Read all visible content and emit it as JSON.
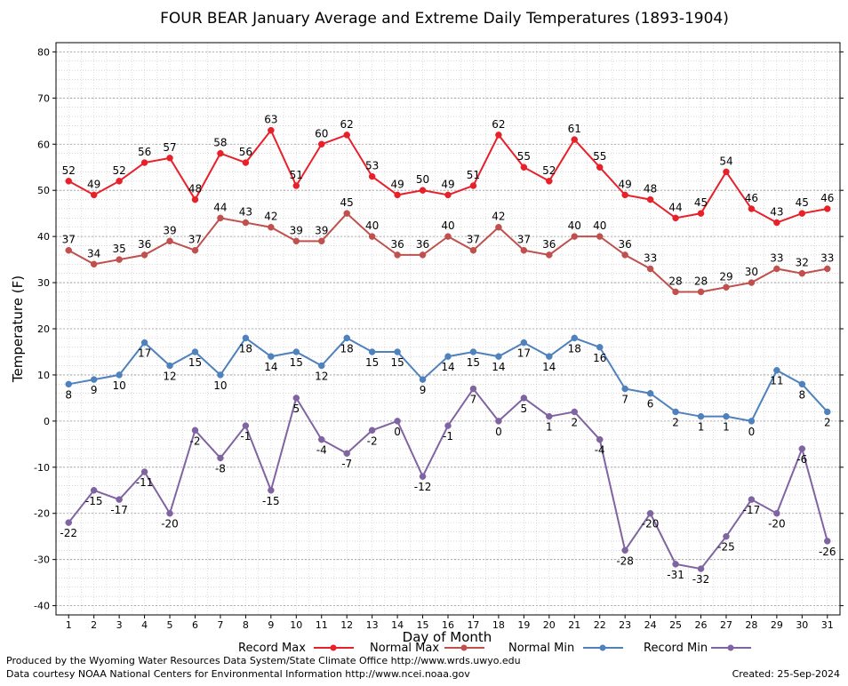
{
  "chart_data": {
    "type": "line",
    "title": "FOUR BEAR January Average and Extreme Daily Temperatures (1893-1904)",
    "xlabel": "Day of Month",
    "ylabel": "Temperature (F)",
    "ylim": [
      -42,
      82
    ],
    "yticks": [
      -40,
      -30,
      -20,
      -10,
      0,
      10,
      20,
      30,
      40,
      50,
      60,
      70,
      80
    ],
    "grid": true,
    "legend_placement": "bottom",
    "x": [
      1,
      2,
      3,
      4,
      5,
      6,
      7,
      8,
      9,
      10,
      11,
      12,
      13,
      14,
      15,
      16,
      17,
      18,
      19,
      20,
      21,
      22,
      23,
      24,
      25,
      26,
      27,
      28,
      29,
      30,
      31
    ],
    "series": [
      {
        "name": "Record Max",
        "color": "#e8202a",
        "values": [
          52,
          49,
          52,
          56,
          57,
          48,
          58,
          56,
          63,
          51,
          60,
          62,
          53,
          49,
          50,
          49,
          51,
          62,
          55,
          52,
          61,
          55,
          49,
          48,
          44,
          45,
          54,
          46,
          43,
          45,
          46
        ]
      },
      {
        "name": "Normal Max",
        "color": "#c0504d",
        "values": [
          37,
          34,
          35,
          36,
          39,
          37,
          44,
          43,
          42,
          39,
          39,
          45,
          40,
          36,
          36,
          40,
          37,
          42,
          37,
          36,
          40,
          40,
          36,
          33,
          28,
          28,
          29,
          30,
          33,
          32,
          33
        ]
      },
      {
        "name": "Normal Min",
        "color": "#4f81bd",
        "values": [
          8,
          9,
          10,
          17,
          12,
          15,
          10,
          18,
          14,
          15,
          12,
          18,
          15,
          15,
          9,
          14,
          15,
          14,
          17,
          14,
          18,
          16,
          7,
          6,
          2,
          1,
          1,
          0,
          11,
          8,
          2
        ]
      },
      {
        "name": "Record Min",
        "color": "#8064a2",
        "values": [
          -22,
          -15,
          -17,
          -11,
          -20,
          -2,
          -8,
          -1,
          -15,
          5,
          -4,
          -7,
          -2,
          0,
          -12,
          -1,
          7,
          0,
          5,
          1,
          2,
          -4,
          -28,
          -20,
          -31,
          -32,
          -25,
          -17,
          -20,
          -6,
          -26
        ]
      }
    ]
  },
  "footer": {
    "produced_by": "Produced by the Wyoming Water Resources Data System/State Climate Office http://www.wrds.uwyo.edu",
    "courtesy": "Data courtesy NOAA National Centers for Environmental Information http://www.ncei.noaa.gov",
    "created": "Created:  25-Sep-2024"
  }
}
